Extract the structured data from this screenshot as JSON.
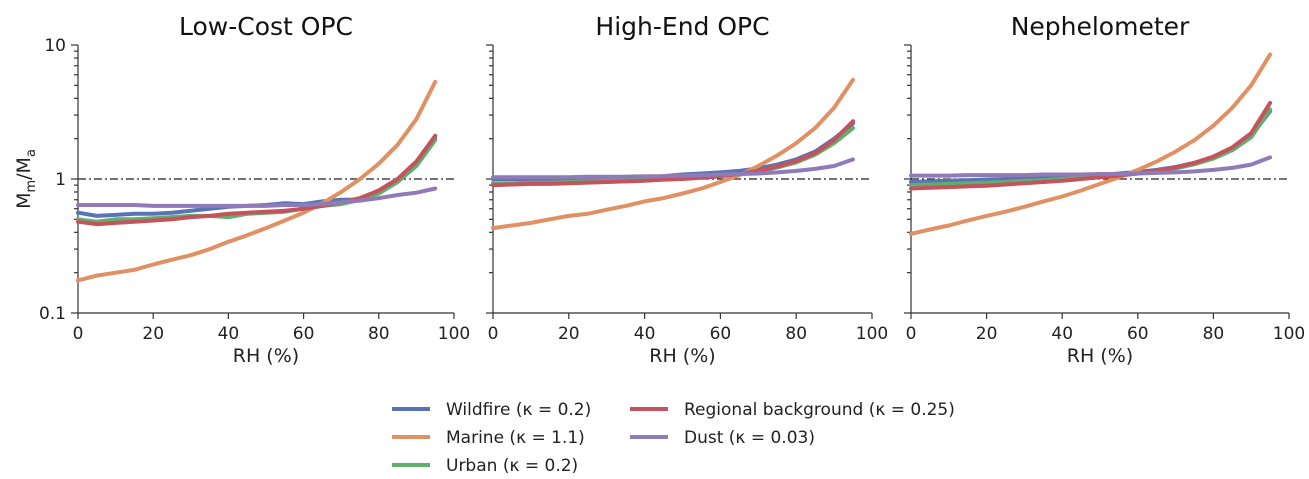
{
  "ylabel_main": "M",
  "ylabel_sub1": "m",
  "ylabel_sep": "/M",
  "ylabel_sub2": "a",
  "chart_data": [
    {
      "type": "line",
      "title": "Low-Cost OPC",
      "xlabel": "RH (%)",
      "xlim": [
        0,
        100
      ],
      "ylim": [
        0.1,
        10
      ],
      "yscale": "log",
      "x_ticks": [
        "0",
        "20",
        "40",
        "60",
        "80",
        "100"
      ],
      "y_ticks": [
        "0.1",
        "1",
        "10"
      ],
      "reference_line": 1,
      "series": [
        {
          "name": "Wildfire (κ = 0.2)",
          "x": [
            0,
            5,
            10,
            15,
            20,
            25,
            30,
            35,
            40,
            45,
            50,
            55,
            60,
            65,
            70,
            75,
            80,
            85,
            90,
            95
          ],
          "y": [
            0.56,
            0.53,
            0.54,
            0.55,
            0.55,
            0.56,
            0.58,
            0.6,
            0.62,
            0.63,
            0.64,
            0.66,
            0.65,
            0.68,
            0.7,
            0.7,
            0.82,
            1.0,
            1.3,
            2.0
          ]
        },
        {
          "name": "Marine (κ = 1.1)",
          "x": [
            0,
            5,
            10,
            15,
            20,
            25,
            30,
            35,
            40,
            45,
            50,
            55,
            60,
            65,
            70,
            75,
            80,
            85,
            90,
            95
          ],
          "y": [
            0.175,
            0.19,
            0.2,
            0.21,
            0.23,
            0.25,
            0.27,
            0.3,
            0.34,
            0.38,
            0.43,
            0.49,
            0.56,
            0.66,
            0.8,
            1.0,
            1.3,
            1.8,
            2.8,
            5.3
          ]
        },
        {
          "name": "Urban (κ = 0.2)",
          "x": [
            0,
            5,
            10,
            15,
            20,
            25,
            30,
            35,
            40,
            45,
            50,
            55,
            60,
            65,
            70,
            75,
            80,
            85,
            90,
            95
          ],
          "y": [
            0.5,
            0.48,
            0.5,
            0.5,
            0.51,
            0.52,
            0.53,
            0.53,
            0.52,
            0.55,
            0.56,
            0.57,
            0.6,
            0.63,
            0.65,
            0.7,
            0.78,
            0.95,
            1.25,
            1.95
          ]
        },
        {
          "name": "Regional background (κ = 0.25)",
          "x": [
            0,
            5,
            10,
            15,
            20,
            25,
            30,
            35,
            40,
            45,
            50,
            55,
            60,
            65,
            70,
            75,
            80,
            85,
            90,
            95
          ],
          "y": [
            0.48,
            0.46,
            0.47,
            0.48,
            0.49,
            0.5,
            0.52,
            0.53,
            0.55,
            0.56,
            0.57,
            0.58,
            0.6,
            0.63,
            0.67,
            0.72,
            0.82,
            1.0,
            1.35,
            2.1
          ]
        },
        {
          "name": "Dust (κ = 0.03)",
          "x": [
            0,
            5,
            10,
            15,
            20,
            25,
            30,
            35,
            40,
            45,
            50,
            55,
            60,
            65,
            70,
            75,
            80,
            85,
            90,
            95
          ],
          "y": [
            0.64,
            0.64,
            0.64,
            0.64,
            0.63,
            0.63,
            0.63,
            0.63,
            0.63,
            0.63,
            0.63,
            0.64,
            0.64,
            0.65,
            0.67,
            0.69,
            0.72,
            0.76,
            0.79,
            0.85
          ]
        }
      ]
    },
    {
      "type": "line",
      "title": "High-End OPC",
      "xlabel": "RH (%)",
      "xlim": [
        0,
        100
      ],
      "ylim": [
        0.1,
        10
      ],
      "yscale": "log",
      "x_ticks": [
        "0",
        "20",
        "40",
        "60",
        "80",
        "100"
      ],
      "y_ticks": [],
      "reference_line": 1,
      "series": [
        {
          "name": "Wildfire (κ = 0.2)",
          "x": [
            0,
            5,
            10,
            15,
            20,
            25,
            30,
            35,
            40,
            45,
            50,
            55,
            60,
            65,
            70,
            75,
            80,
            85,
            90,
            95
          ],
          "y": [
            1.0,
            1.0,
            1.0,
            1.0,
            1.0,
            1.0,
            1.0,
            1.02,
            1.03,
            1.05,
            1.08,
            1.1,
            1.12,
            1.15,
            1.2,
            1.28,
            1.4,
            1.6,
            2.0,
            2.6
          ]
        },
        {
          "name": "Marine (κ = 1.1)",
          "x": [
            0,
            5,
            10,
            15,
            20,
            25,
            30,
            35,
            40,
            45,
            50,
            55,
            60,
            65,
            70,
            75,
            80,
            85,
            90,
            95
          ],
          "y": [
            0.43,
            0.45,
            0.47,
            0.5,
            0.53,
            0.55,
            0.59,
            0.63,
            0.68,
            0.72,
            0.78,
            0.85,
            0.95,
            1.07,
            1.25,
            1.5,
            1.85,
            2.4,
            3.4,
            5.5
          ]
        },
        {
          "name": "Urban (κ = 0.2)",
          "x": [
            0,
            5,
            10,
            15,
            20,
            25,
            30,
            35,
            40,
            45,
            50,
            55,
            60,
            65,
            70,
            75,
            80,
            85,
            90,
            95
          ],
          "y": [
            0.93,
            0.93,
            0.94,
            0.94,
            0.95,
            0.96,
            0.97,
            0.98,
            0.99,
            1.0,
            1.02,
            1.04,
            1.06,
            1.09,
            1.14,
            1.22,
            1.33,
            1.52,
            1.85,
            2.4
          ]
        },
        {
          "name": "Regional background (κ = 0.25)",
          "x": [
            0,
            5,
            10,
            15,
            20,
            25,
            30,
            35,
            40,
            45,
            50,
            55,
            60,
            65,
            70,
            75,
            80,
            85,
            90,
            95
          ],
          "y": [
            0.9,
            0.91,
            0.92,
            0.92,
            0.93,
            0.94,
            0.95,
            0.96,
            0.97,
            0.99,
            1.0,
            1.02,
            1.05,
            1.09,
            1.15,
            1.24,
            1.36,
            1.56,
            1.95,
            2.7
          ]
        },
        {
          "name": "Dust (κ = 0.03)",
          "x": [
            0,
            5,
            10,
            15,
            20,
            25,
            30,
            35,
            40,
            45,
            50,
            55,
            60,
            65,
            70,
            75,
            80,
            85,
            90,
            95
          ],
          "y": [
            1.03,
            1.03,
            1.03,
            1.03,
            1.03,
            1.04,
            1.04,
            1.04,
            1.05,
            1.05,
            1.06,
            1.07,
            1.08,
            1.09,
            1.1,
            1.12,
            1.15,
            1.19,
            1.25,
            1.4
          ]
        }
      ]
    },
    {
      "type": "line",
      "title": "Nephelometer",
      "xlabel": "RH (%)",
      "xlim": [
        0,
        100
      ],
      "ylim": [
        0.1,
        10
      ],
      "yscale": "log",
      "x_ticks": [
        "0",
        "20",
        "40",
        "60",
        "80",
        "100"
      ],
      "y_ticks": [],
      "reference_line": 1,
      "series": [
        {
          "name": "Wildfire (κ = 0.2)",
          "x": [
            0,
            5,
            10,
            15,
            20,
            25,
            30,
            35,
            40,
            45,
            50,
            55,
            60,
            65,
            70,
            75,
            80,
            85,
            90,
            95
          ],
          "y": [
            0.95,
            0.96,
            0.97,
            0.98,
            0.99,
            1.0,
            1.01,
            1.02,
            1.03,
            1.05,
            1.07,
            1.1,
            1.13,
            1.17,
            1.23,
            1.32,
            1.45,
            1.68,
            2.1,
            3.2
          ]
        },
        {
          "name": "Marine (κ = 1.1)",
          "x": [
            0,
            5,
            10,
            15,
            20,
            25,
            30,
            35,
            40,
            45,
            50,
            55,
            60,
            65,
            70,
            75,
            80,
            85,
            90,
            95
          ],
          "y": [
            0.39,
            0.42,
            0.45,
            0.49,
            0.53,
            0.57,
            0.62,
            0.68,
            0.74,
            0.82,
            0.92,
            1.03,
            1.17,
            1.35,
            1.6,
            1.95,
            2.5,
            3.4,
            5.0,
            8.5
          ]
        },
        {
          "name": "Urban (κ = 0.2)",
          "x": [
            0,
            5,
            10,
            15,
            20,
            25,
            30,
            35,
            40,
            45,
            50,
            55,
            60,
            65,
            70,
            75,
            80,
            85,
            90,
            95
          ],
          "y": [
            0.9,
            0.91,
            0.92,
            0.93,
            0.94,
            0.95,
            0.97,
            0.98,
            1.0,
            1.02,
            1.04,
            1.07,
            1.1,
            1.14,
            1.2,
            1.29,
            1.42,
            1.64,
            2.05,
            3.3
          ]
        },
        {
          "name": "Regional background (κ = 0.25)",
          "x": [
            0,
            5,
            10,
            15,
            20,
            25,
            30,
            35,
            40,
            45,
            50,
            55,
            60,
            65,
            70,
            75,
            80,
            85,
            90,
            95
          ],
          "y": [
            0.85,
            0.86,
            0.87,
            0.88,
            0.89,
            0.91,
            0.93,
            0.95,
            0.97,
            1.0,
            1.03,
            1.06,
            1.1,
            1.15,
            1.22,
            1.32,
            1.47,
            1.72,
            2.2,
            3.7
          ]
        },
        {
          "name": "Dust (κ = 0.03)",
          "x": [
            0,
            5,
            10,
            15,
            20,
            25,
            30,
            35,
            40,
            45,
            50,
            55,
            60,
            65,
            70,
            75,
            80,
            85,
            90,
            95
          ],
          "y": [
            1.06,
            1.06,
            1.06,
            1.07,
            1.07,
            1.07,
            1.07,
            1.08,
            1.08,
            1.08,
            1.09,
            1.09,
            1.1,
            1.11,
            1.12,
            1.14,
            1.17,
            1.21,
            1.28,
            1.45
          ]
        }
      ]
    }
  ],
  "legend": {
    "placement": "bottom-center",
    "items": [
      {
        "label": "Wildfire (κ = 0.2)",
        "color": "#5874b4"
      },
      {
        "label": "Marine (κ = 1.1)",
        "color": "#e09063"
      },
      {
        "label": "Urban (κ = 0.2)",
        "color": "#62ae6e"
      },
      {
        "label": "Regional background (κ = 0.25)",
        "color": "#c4535b"
      },
      {
        "label": "Dust (κ = 0.03)",
        "color": "#8f7bb8"
      }
    ]
  },
  "series_colors": [
    "#5874b4",
    "#e09063",
    "#62ae6e",
    "#c4535b",
    "#8f7bb8"
  ]
}
